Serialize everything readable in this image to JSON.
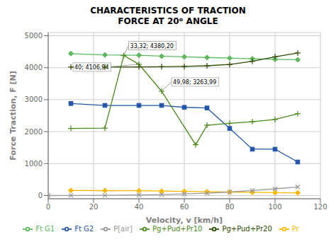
{
  "chart_data": {
    "type": "line",
    "title": "CHARACTERISTICS OF TRACTION\nFORCE AT 20ᵒ ANGLE",
    "x_label": "Velocity, v [km/h]",
    "y_label": "Force Traction, F [N]",
    "xlim": [
      0,
      120
    ],
    "ylim": [
      -100,
      5100
    ],
    "xticks": [
      0,
      20,
      40,
      60,
      80,
      100,
      120
    ],
    "yticks": [
      0,
      1000,
      2000,
      3000,
      4000,
      5000
    ],
    "grid": true,
    "legend": "bottom",
    "series": [
      {
        "name": "Ft G1",
        "color": "#5cb85c",
        "marker": "diamond",
        "x": [
          10,
          25,
          40,
          50,
          60,
          70,
          80,
          90,
          100,
          110
        ],
        "values": [
          4440,
          4400,
          4390,
          4360,
          4340,
          4320,
          4300,
          4280,
          4260,
          4250
        ]
      },
      {
        "name": "Ft G2",
        "color": "#2255aa",
        "marker": "square",
        "x": [
          10,
          25,
          40,
          50,
          60,
          70,
          80,
          90,
          100,
          110
        ],
        "values": [
          2880,
          2820,
          2820,
          2820,
          2760,
          2740,
          2100,
          1450,
          1450,
          1050
        ]
      },
      {
        "name": "Pr",
        "color": "#FFB800",
        "marker": "diamond",
        "x": [
          10,
          25,
          40,
          50,
          60,
          70,
          80,
          90,
          100,
          110
        ],
        "values": [
          160,
          155,
          150,
          140,
          130,
          120,
          110,
          100,
          90,
          85
        ]
      },
      {
        "name": "P[air]",
        "color": "#999999",
        "marker": "x",
        "x": [
          0,
          10,
          25,
          40,
          50,
          60,
          70,
          80,
          90,
          100,
          110
        ],
        "values": [
          0,
          2,
          8,
          18,
          30,
          50,
          75,
          110,
          155,
          210,
          270
        ]
      },
      {
        "name": "Pg+Pud+Pr10",
        "color": "#4a8a1c",
        "marker": "plus",
        "x": [
          10,
          25,
          33.32,
          40,
          50,
          65,
          70,
          80,
          90,
          100,
          110
        ],
        "values": [
          2100,
          2110,
          4380,
          4107,
          3264,
          1590,
          2200,
          2260,
          2310,
          2380,
          2560
        ]
      },
      {
        "name": "Pg+Pud+Pr20",
        "color": "#2d4a00",
        "marker": "plus",
        "x": [
          10,
          25,
          40,
          50,
          60,
          70,
          80,
          90,
          100,
          110
        ],
        "values": [
          4020,
          4020,
          4025,
          4030,
          4040,
          4060,
          4100,
          4200,
          4340,
          4460
        ]
      }
    ],
    "annotations": [
      {
        "text": "33,32; 4380,20",
        "x": 33.32,
        "y": 4380
      },
      {
        "text": "40; 4106,94",
        "x": 40,
        "y": 4107
      },
      {
        "text": "49,98; 3263,99",
        "x": 50,
        "y": 3264
      }
    ]
  }
}
